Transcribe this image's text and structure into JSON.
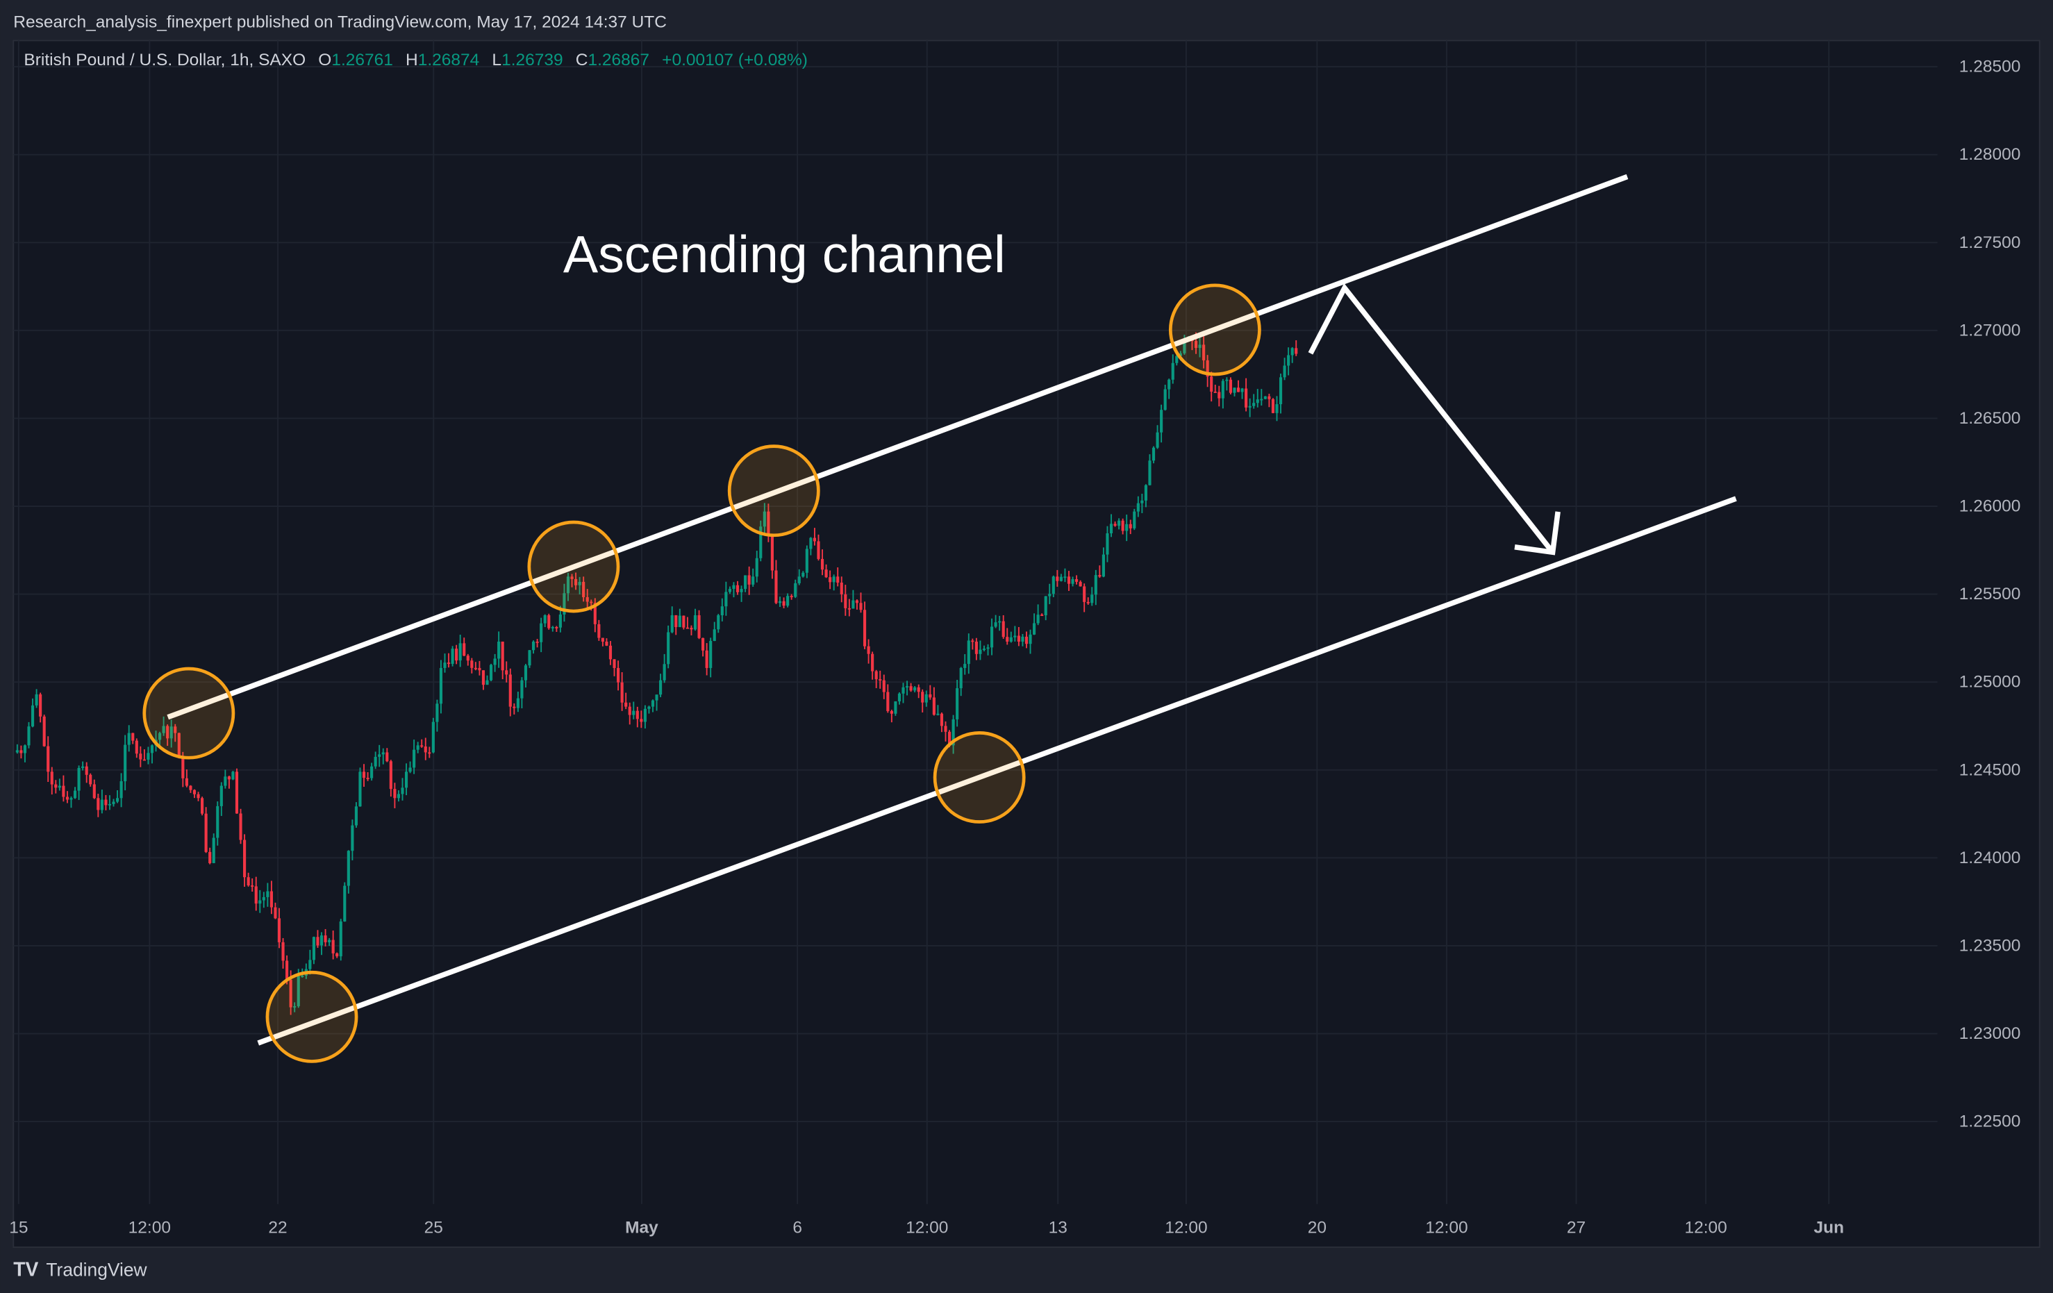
{
  "header": {
    "published": "Research_analysis_finexpert published on TradingView.com, May 17, 2024 14:37 UTC",
    "symbol": "British Pound / U.S. Dollar, 1h, SAXO",
    "o_label": "O",
    "o_value": "1.26761",
    "h_label": "H",
    "h_value": "1.26874",
    "l_label": "L",
    "l_value": "1.26739",
    "c_label": "C",
    "c_value": "1.26867",
    "change": "+0.00107 (+0.08%)"
  },
  "footer": {
    "brand": "TradingView"
  },
  "colors": {
    "background": "#131722",
    "up": "#089981",
    "down": "#f23645",
    "circle": "#f7a21b",
    "annotation": "#ffffff"
  },
  "chart_data": {
    "type": "candlestick",
    "title": "",
    "annotation_text": "Ascending channel",
    "y_ticks": [
      "1.28500",
      "1.28000",
      "1.27500",
      "1.27000",
      "1.26500",
      "1.26000",
      "1.25500",
      "1.25000",
      "1.24500",
      "1.24000",
      "1.23500",
      "1.23000",
      "1.22500"
    ],
    "ylim": [
      1.225,
      1.285
    ],
    "x_ticks": [
      "15",
      "12:00",
      "22",
      "25",
      "May",
      "6",
      "12:00",
      "13",
      "12:00",
      "20",
      "12:00",
      "27",
      "12:00",
      "Jun"
    ],
    "grid": true,
    "closes": [
      1.246,
      1.2464,
      1.2493,
      1.2449,
      1.2441,
      1.2434,
      1.2452,
      1.2434,
      1.243,
      1.2434,
      1.2471,
      1.2456,
      1.2464,
      1.2475,
      1.2471,
      1.2441,
      1.2434,
      1.2397,
      1.2441,
      1.2449,
      1.2389,
      1.2374,
      1.2381,
      1.2352,
      1.2315,
      1.2333,
      1.2355,
      1.2352,
      1.2344,
      1.2404,
      1.2449,
      1.2452,
      1.246,
      1.2434,
      1.2449,
      1.2464,
      1.246,
      1.2508,
      1.2519,
      1.2515,
      1.2508,
      1.2501,
      1.2523,
      1.2486,
      1.2501,
      1.2523,
      1.2538,
      1.2531,
      1.256,
      1.2557,
      1.2545,
      1.2523,
      1.2508,
      1.2486,
      1.2479,
      1.2486,
      1.2501,
      1.2538,
      1.2531,
      1.2538,
      1.2508,
      1.2538,
      1.2553,
      1.2553,
      1.256,
      1.2597,
      1.2545,
      1.2549,
      1.256,
      1.2582,
      1.2564,
      1.256,
      1.2542,
      1.2545,
      1.2516,
      1.2501,
      1.2482,
      1.2497,
      1.2497,
      1.2493,
      1.2482,
      1.2464,
      1.2508,
      1.2523,
      1.2519,
      1.2534,
      1.2523,
      1.2523,
      1.2527,
      1.2538,
      1.256,
      1.256,
      1.2557,
      1.2545,
      1.256,
      1.259,
      1.2586,
      1.2597,
      1.2612,
      1.2642,
      1.2672,
      1.2687,
      1.2694,
      1.2683,
      1.2665,
      1.2672,
      1.2665,
      1.2657,
      1.2661,
      1.2653,
      1.268,
      1.26867
    ],
    "channel": {
      "upper": [
        [
          1.248,
          "Apr 18"
        ],
        [
          1.2785,
          "May 29"
        ]
      ],
      "lower": [
        [
          1.2295,
          "Apr 19"
        ],
        [
          1.2605,
          "May 31"
        ]
      ]
    },
    "projection": "down to lower channel line"
  }
}
